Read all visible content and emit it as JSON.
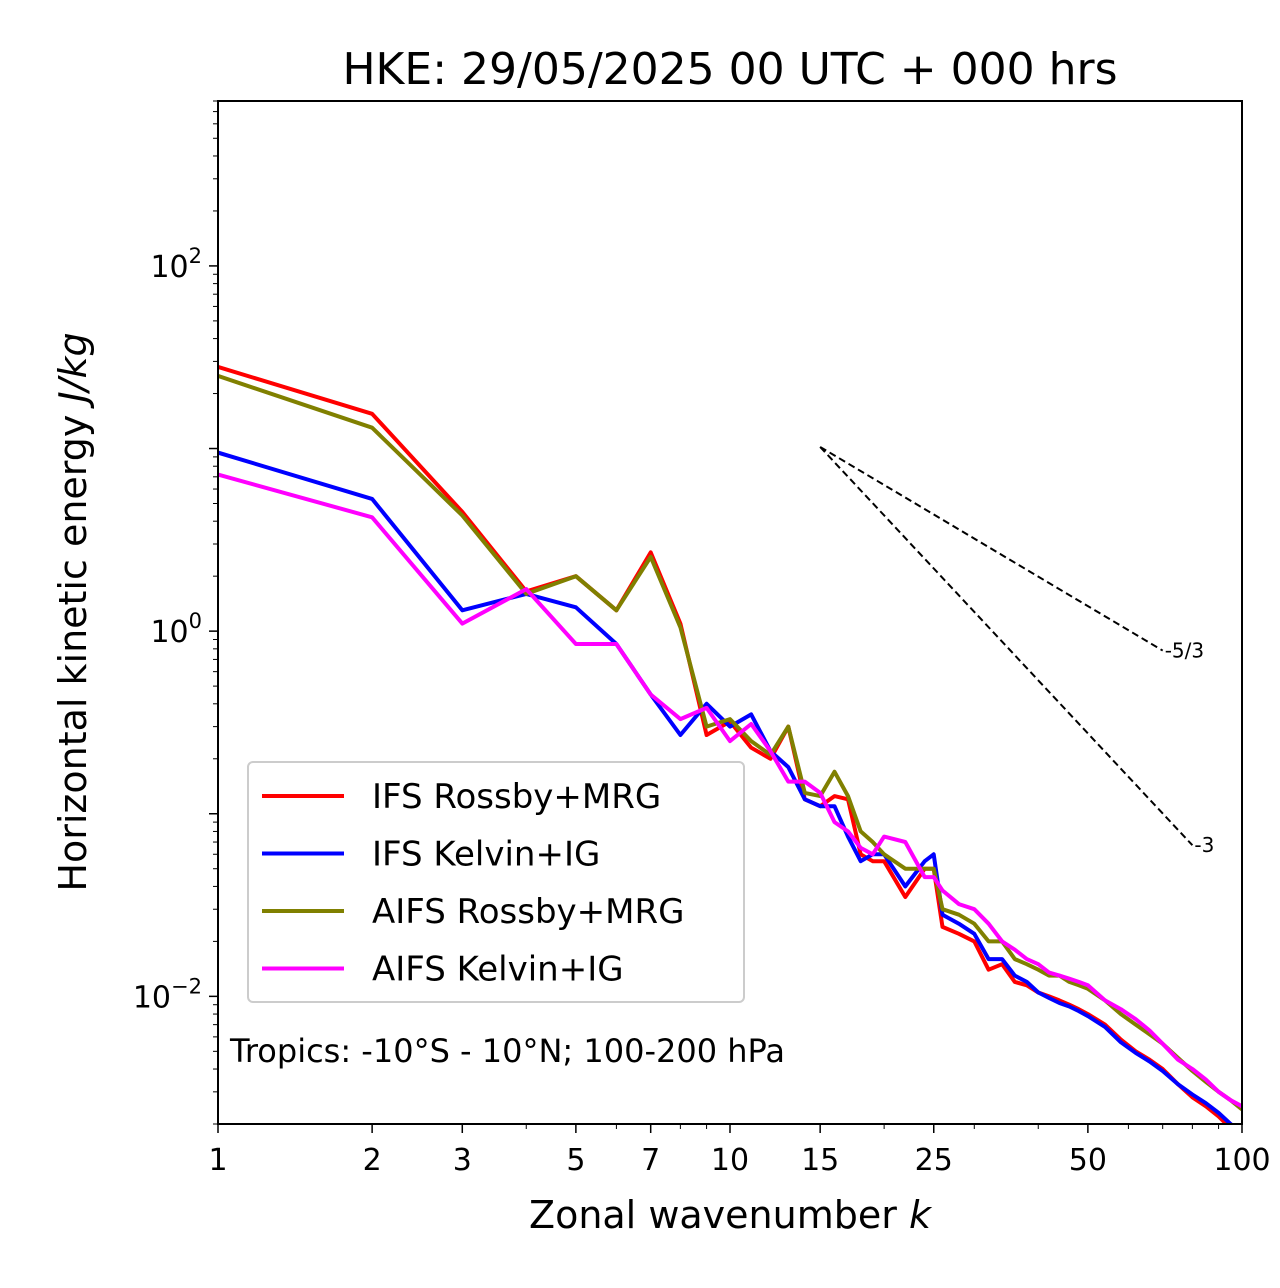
{
  "chart_data": {
    "type": "line",
    "title": "HKE: 29/05/2025 00 UTC + 000 hrs",
    "xlabel": "Zonal wavenumber",
    "xlabel_var": "k",
    "ylabel": "Horizontal kinetic energy",
    "ylabel_unit": "J/kg",
    "xscale": "log",
    "yscale": "log",
    "xlim": [
      1,
      100
    ],
    "ylim": [
      0.002,
      800
    ],
    "x_ticks": [
      {
        "value": 1,
        "label": "1"
      },
      {
        "value": 2,
        "label": "2"
      },
      {
        "value": 3,
        "label": "3"
      },
      {
        "value": 5,
        "label": "5"
      },
      {
        "value": 7,
        "label": "7"
      },
      {
        "value": 10,
        "label": "10"
      },
      {
        "value": 15,
        "label": "15"
      },
      {
        "value": 25,
        "label": "25"
      },
      {
        "value": 50,
        "label": "50"
      },
      {
        "value": 100,
        "label": "100"
      }
    ],
    "y_ticks": [
      {
        "value": 100,
        "base": "10",
        "exp": "2"
      },
      {
        "value": 1,
        "base": "10",
        "exp": "0"
      },
      {
        "value": 0.01,
        "base": "10",
        "exp": "−2"
      }
    ],
    "grid": false,
    "legend_position": "lower-left",
    "annotation": "Tropics: -10°S - 10°N; 100-200 hPa",
    "reference_slopes": [
      {
        "label": "-5/3",
        "slope": -1.6667,
        "x0": 15,
        "y0": 10.2,
        "x1": 70
      },
      {
        "label": "-3",
        "slope": -3,
        "x0": 15,
        "y0": 10.2,
        "x1": 80
      }
    ],
    "series": [
      {
        "name": "IFS Rossby+MRG",
        "color": "#ff0000",
        "x": [
          1,
          2,
          3,
          4,
          5,
          6,
          7,
          8,
          9,
          10,
          11,
          12,
          13,
          14,
          15,
          16,
          17,
          18,
          19,
          20,
          22,
          24,
          25,
          26,
          28,
          30,
          32,
          34,
          36,
          38,
          40,
          42,
          44,
          46,
          48,
          50,
          54,
          58,
          62,
          66,
          70,
          75,
          80,
          85,
          90,
          95,
          100
        ],
        "y": [
          28,
          15.5,
          4.5,
          1.65,
          2.0,
          1.3,
          2.7,
          1.1,
          0.27,
          0.32,
          0.23,
          0.2,
          0.3,
          0.12,
          0.11,
          0.125,
          0.12,
          0.06,
          0.055,
          0.055,
          0.035,
          0.05,
          0.05,
          0.024,
          0.022,
          0.02,
          0.014,
          0.015,
          0.012,
          0.0115,
          0.0105,
          0.01,
          0.0095,
          0.009,
          0.0085,
          0.008,
          0.007,
          0.0058,
          0.005,
          0.0045,
          0.004,
          0.0033,
          0.0028,
          0.0025,
          0.0022,
          0.0019,
          0.0017
        ]
      },
      {
        "name": "IFS Kelvin+IG",
        "color": "#0000ff",
        "x": [
          1,
          2,
          3,
          4,
          5,
          6,
          7,
          8,
          9,
          10,
          11,
          12,
          13,
          14,
          15,
          16,
          17,
          18,
          19,
          20,
          22,
          24,
          25,
          26,
          28,
          30,
          32,
          34,
          36,
          38,
          40,
          42,
          44,
          46,
          48,
          50,
          54,
          58,
          62,
          66,
          70,
          75,
          80,
          85,
          90,
          95,
          100
        ],
        "y": [
          9.5,
          5.3,
          1.3,
          1.6,
          1.35,
          0.85,
          0.45,
          0.27,
          0.4,
          0.3,
          0.35,
          0.22,
          0.18,
          0.12,
          0.11,
          0.11,
          0.075,
          0.055,
          0.06,
          0.06,
          0.04,
          0.055,
          0.06,
          0.028,
          0.025,
          0.022,
          0.016,
          0.016,
          0.013,
          0.012,
          0.0105,
          0.0098,
          0.0092,
          0.0088,
          0.0083,
          0.0078,
          0.0068,
          0.0056,
          0.0049,
          0.0044,
          0.0039,
          0.0033,
          0.0029,
          0.0026,
          0.0023,
          0.002,
          0.0018
        ]
      },
      {
        "name": "AIFS Rossby+MRG",
        "color": "#808000",
        "x": [
          1,
          2,
          3,
          4,
          5,
          6,
          7,
          8,
          9,
          10,
          11,
          12,
          13,
          14,
          15,
          16,
          17,
          18,
          19,
          20,
          22,
          24,
          25,
          26,
          28,
          30,
          32,
          34,
          36,
          38,
          40,
          42,
          44,
          46,
          48,
          50,
          54,
          58,
          62,
          66,
          70,
          75,
          80,
          85,
          90,
          95,
          100
        ],
        "y": [
          25,
          13,
          4.3,
          1.6,
          2.0,
          1.3,
          2.55,
          1.05,
          0.3,
          0.33,
          0.25,
          0.21,
          0.3,
          0.13,
          0.125,
          0.17,
          0.125,
          0.08,
          0.07,
          0.06,
          0.05,
          0.05,
          0.05,
          0.03,
          0.028,
          0.025,
          0.02,
          0.02,
          0.016,
          0.015,
          0.014,
          0.013,
          0.013,
          0.012,
          0.0115,
          0.011,
          0.0095,
          0.008,
          0.007,
          0.0062,
          0.0055,
          0.0046,
          0.0039,
          0.0034,
          0.003,
          0.0027,
          0.0024
        ]
      },
      {
        "name": "AIFS Kelvin+IG",
        "color": "#ff00ff",
        "x": [
          1,
          2,
          3,
          4,
          5,
          6,
          7,
          8,
          9,
          10,
          11,
          12,
          13,
          14,
          15,
          16,
          17,
          18,
          19,
          20,
          22,
          24,
          25,
          26,
          28,
          30,
          32,
          34,
          36,
          38,
          40,
          42,
          44,
          46,
          48,
          50,
          54,
          58,
          62,
          66,
          70,
          75,
          80,
          85,
          90,
          95,
          100
        ],
        "y": [
          7.2,
          4.2,
          1.1,
          1.7,
          0.85,
          0.85,
          0.45,
          0.33,
          0.38,
          0.25,
          0.31,
          0.22,
          0.15,
          0.15,
          0.13,
          0.09,
          0.08,
          0.065,
          0.06,
          0.075,
          0.07,
          0.045,
          0.045,
          0.038,
          0.032,
          0.03,
          0.025,
          0.02,
          0.018,
          0.016,
          0.015,
          0.0135,
          0.013,
          0.0125,
          0.012,
          0.0115,
          0.0095,
          0.0085,
          0.0075,
          0.0065,
          0.0055,
          0.0045,
          0.004,
          0.0035,
          0.003,
          0.0027,
          0.0025
        ]
      }
    ]
  }
}
